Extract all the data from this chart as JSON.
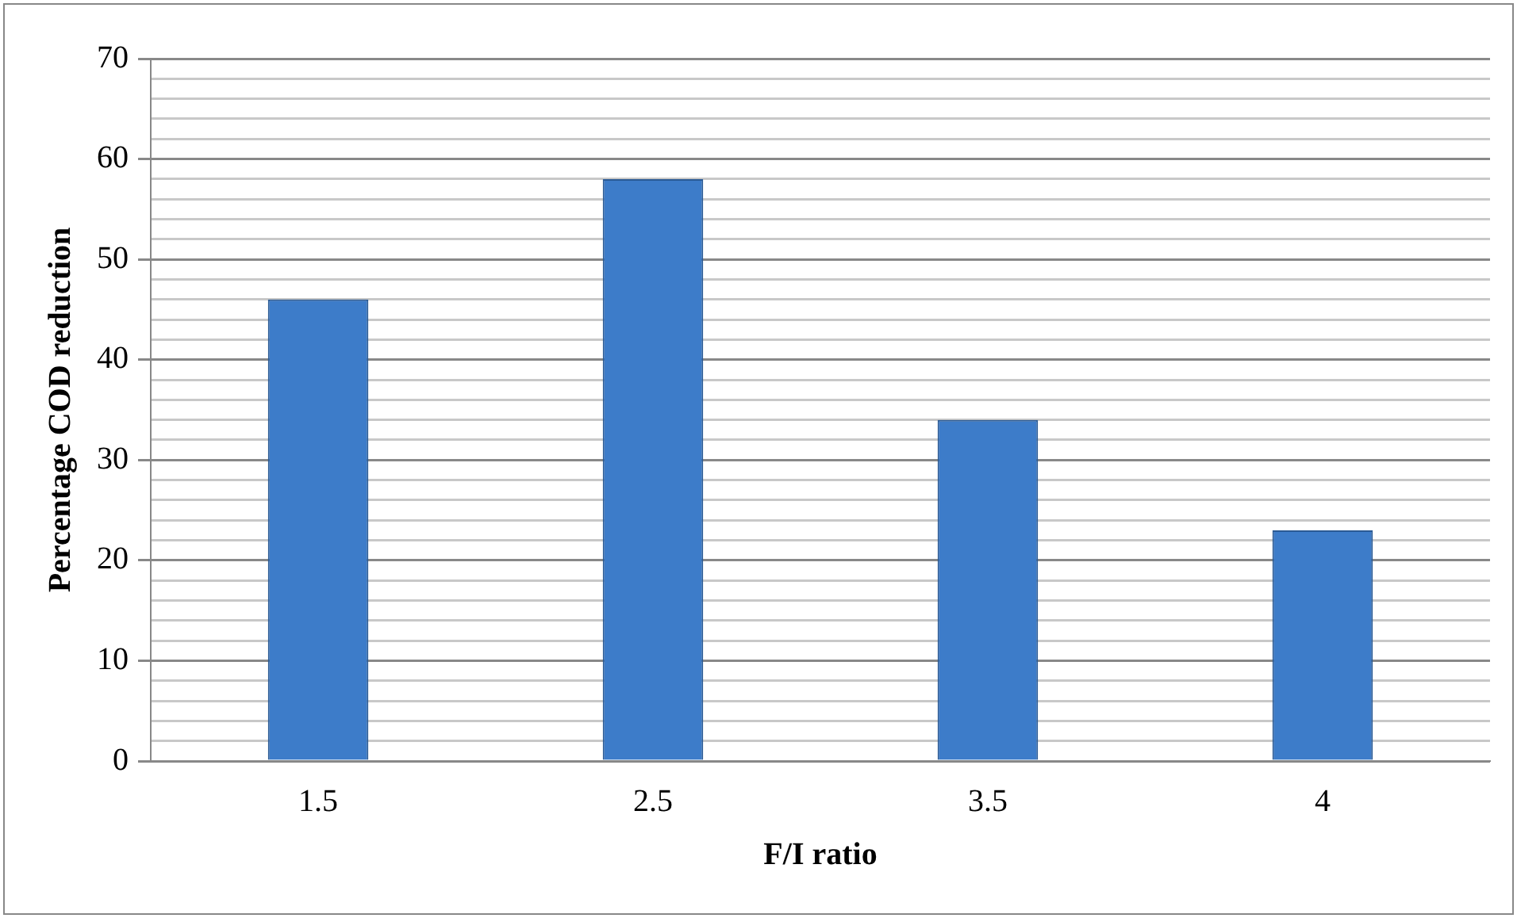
{
  "chart_data": {
    "type": "bar",
    "xlabel": "F/I ratio",
    "ylabel": "Percentage COD reduction",
    "categories": [
      "1.5",
      "2.5",
      "3.5",
      "4"
    ],
    "values": [
      46,
      58,
      34,
      23
    ],
    "color": "#3d7cc9",
    "ylim": [
      0,
      70
    ],
    "yticks": [
      0,
      {
        "value": 2,
        "label": null
      },
      {
        "value": 4,
        "label": null
      },
      {
        "value": 6,
        "label": null
      },
      {
        "value": 8,
        "label": null
      },
      10,
      {
        "value": 12,
        "label": null
      },
      {
        "value": 14,
        "label": null
      },
      {
        "value": 16,
        "label": null
      },
      {
        "value": 18,
        "label": null
      },
      20,
      {
        "value": 22,
        "label": null
      },
      {
        "value": 24,
        "label": null
      },
      {
        "value": 26,
        "label": null
      },
      {
        "value": 28,
        "label": null
      },
      30,
      {
        "value": 32,
        "label": null
      },
      {
        "value": 34,
        "label": null
      },
      {
        "value": 36,
        "label": null
      },
      {
        "value": 38,
        "label": null
      },
      40,
      {
        "value": 42,
        "label": null
      },
      {
        "value": 44,
        "label": null
      },
      {
        "value": 46,
        "label": null
      },
      {
        "value": 48,
        "label": null
      },
      50,
      {
        "value": 52,
        "label": null
      },
      {
        "value": 54,
        "label": null
      },
      {
        "value": 56,
        "label": null
      },
      {
        "value": 58,
        "label": null
      },
      60,
      {
        "value": 62,
        "label": null
      },
      {
        "value": 64,
        "label": null
      },
      {
        "value": 66,
        "label": null
      },
      {
        "value": 68,
        "label": null
      },
      70
    ],
    "grid": "y",
    "legend": false
  }
}
